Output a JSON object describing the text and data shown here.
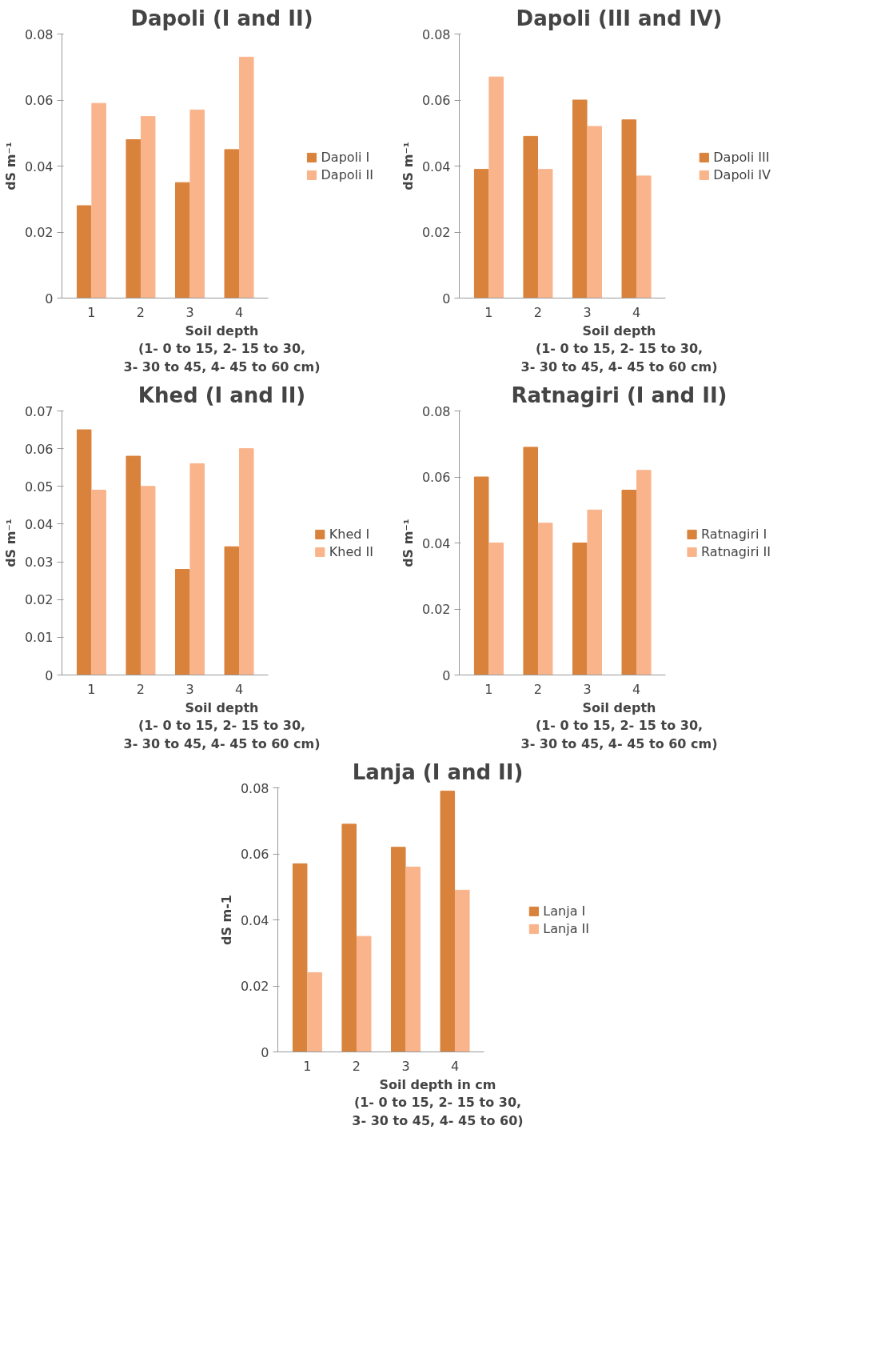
{
  "chart_data": [
    {
      "type": "bar",
      "title": "Dapoli (I and II)",
      "ylabel": "dS m⁻¹",
      "xlabel": "Soil depth\n(1- 0 to 15, 2- 15 to 30,\n3- 30 to 45, 4- 45 to 60 cm)",
      "categories": [
        "1",
        "2",
        "3",
        "4"
      ],
      "ylim": [
        0,
        0.08
      ],
      "yticks": [
        0,
        0.02,
        0.04,
        0.06,
        0.08
      ],
      "legend": "right",
      "grid": false,
      "series": [
        {
          "name": "Dapoli I",
          "color": "#d9823b",
          "values": [
            0.028,
            0.048,
            0.035,
            0.045
          ]
        },
        {
          "name": "Dapoli II",
          "color": "#f9b48c",
          "values": [
            0.059,
            0.055,
            0.057,
            0.073
          ]
        }
      ]
    },
    {
      "type": "bar",
      "title": "Dapoli (III and IV)",
      "ylabel": "dS m⁻¹",
      "xlabel": "Soil depth\n(1- 0 to 15, 2- 15 to 30,\n3- 30 to 45, 4- 45 to 60 cm)",
      "categories": [
        "1",
        "2",
        "3",
        "4"
      ],
      "ylim": [
        0,
        0.08
      ],
      "yticks": [
        0,
        0.02,
        0.04,
        0.06,
        0.08
      ],
      "legend": "right",
      "grid": false,
      "series": [
        {
          "name": "Dapoli III",
          "color": "#d9823b",
          "values": [
            0.039,
            0.049,
            0.06,
            0.054
          ]
        },
        {
          "name": "Dapoli IV",
          "color": "#f9b48c",
          "values": [
            0.067,
            0.039,
            0.052,
            0.037
          ]
        }
      ]
    },
    {
      "type": "bar",
      "title": "Khed (I and II)",
      "ylabel": "dS m⁻¹",
      "xlabel": "Soil depth\n(1- 0 to 15, 2- 15 to 30,\n3- 30 to 45, 4- 45 to 60 cm)",
      "categories": [
        "1",
        "2",
        "3",
        "4"
      ],
      "ylim": [
        0,
        0.07
      ],
      "yticks": [
        0,
        0.01,
        0.02,
        0.03,
        0.04,
        0.05,
        0.06,
        0.07
      ],
      "legend": "right",
      "grid": false,
      "series": [
        {
          "name": "Khed I",
          "color": "#d9823b",
          "values": [
            0.065,
            0.058,
            0.028,
            0.034
          ]
        },
        {
          "name": "Khed II",
          "color": "#f9b48c",
          "values": [
            0.049,
            0.05,
            0.056,
            0.06
          ]
        }
      ]
    },
    {
      "type": "bar",
      "title": "Ratnagiri (I and II)",
      "ylabel": "dS m⁻¹",
      "xlabel": "Soil depth\n(1- 0 to 15, 2- 15 to 30,\n3- 30 to 45, 4- 45 to 60 cm)",
      "categories": [
        "1",
        "2",
        "3",
        "4"
      ],
      "ylim": [
        0,
        0.08
      ],
      "yticks": [
        0,
        0.02,
        0.04,
        0.06,
        0.08
      ],
      "legend": "right",
      "grid": false,
      "series": [
        {
          "name": "Ratnagiri I",
          "color": "#d9823b",
          "values": [
            0.06,
            0.069,
            0.04,
            0.056
          ]
        },
        {
          "name": "Ratnagiri II",
          "color": "#f9b48c",
          "values": [
            0.04,
            0.046,
            0.05,
            0.062
          ]
        }
      ]
    },
    {
      "type": "bar",
      "title": "Lanja (I and II)",
      "ylabel": "dS m-1",
      "xlabel": "Soil depth in cm\n(1- 0 to 15, 2- 15 to 30,\n3- 30 to 45, 4- 45 to 60)",
      "categories": [
        "1",
        "2",
        "3",
        "4"
      ],
      "ylim": [
        0,
        0.08
      ],
      "yticks": [
        0,
        0.02,
        0.04,
        0.06,
        0.08
      ],
      "legend": "right",
      "grid": false,
      "series": [
        {
          "name": "Lanja I",
          "color": "#d9823b",
          "values": [
            0.057,
            0.069,
            0.062,
            0.079
          ]
        },
        {
          "name": "Lanja II",
          "color": "#f9b48c",
          "values": [
            0.024,
            0.035,
            0.056,
            0.049
          ]
        }
      ]
    }
  ]
}
